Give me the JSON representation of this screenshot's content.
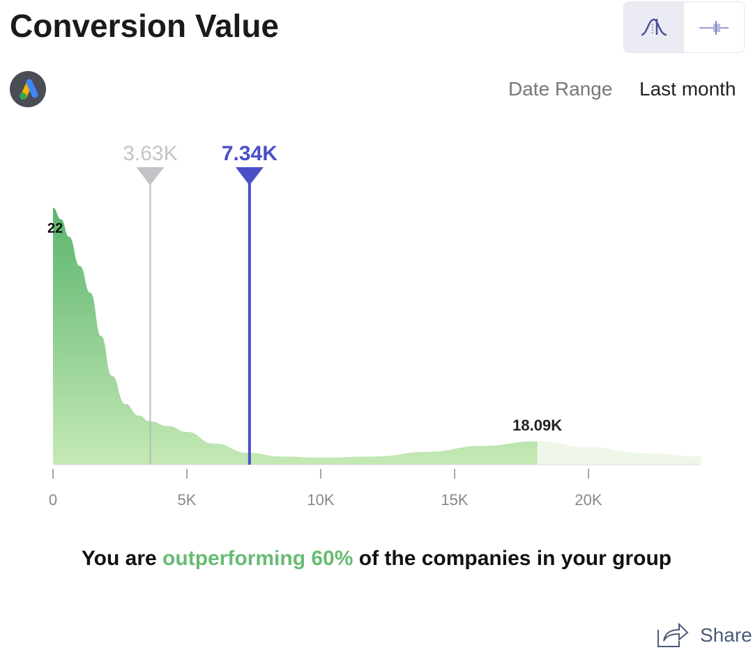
{
  "title": "Conversion Value",
  "view_toggle": {
    "options": [
      "distribution-icon",
      "boxplot-icon"
    ],
    "active": 0
  },
  "date_range": {
    "label": "Date Range",
    "value": "Last month"
  },
  "message": {
    "pre": "You are ",
    "highlight": "outperforming 60%",
    "post": " of the companies in your group"
  },
  "share_label": "Share",
  "colors": {
    "accent": "#4a4fc8",
    "peer": "#c4c4c8",
    "fill_dark": "#5bb56e",
    "fill_light": "#bfe5b0",
    "tail": "#eef7e9",
    "highlight": "#67bb72"
  },
  "chart_data": {
    "type": "area",
    "x": [
      0,
      0.3,
      0.6,
      1,
      1.4,
      1.8,
      2.2,
      2.7,
      3.2,
      3.63,
      4.3,
      5,
      6,
      7.34,
      8.5,
      10,
      12,
      14,
      16,
      18.09,
      20,
      22,
      24.2
    ],
    "y": [
      22,
      21,
      19.5,
      17,
      14.7,
      11,
      7.6,
      5.2,
      4.2,
      3.7,
      3.3,
      2.8,
      1.8,
      1.0,
      0.7,
      0.6,
      0.7,
      1.1,
      1.6,
      2.0,
      1.5,
      1.0,
      0.7
    ],
    "xlim": [
      0,
      24.2
    ],
    "ylim": [
      0,
      22
    ],
    "xticks": [
      0,
      5,
      10,
      15,
      20
    ],
    "xtick_labels": [
      "0",
      "5K",
      "10K",
      "15K",
      "20K"
    ],
    "peak_label": "22",
    "markers": [
      {
        "name": "group",
        "value": 3.63,
        "label": "3.63K"
      },
      {
        "name": "you",
        "value": 7.34,
        "label": "7.34K"
      }
    ],
    "highlight_end": {
      "value": 18.09,
      "label": "18.09K"
    }
  }
}
